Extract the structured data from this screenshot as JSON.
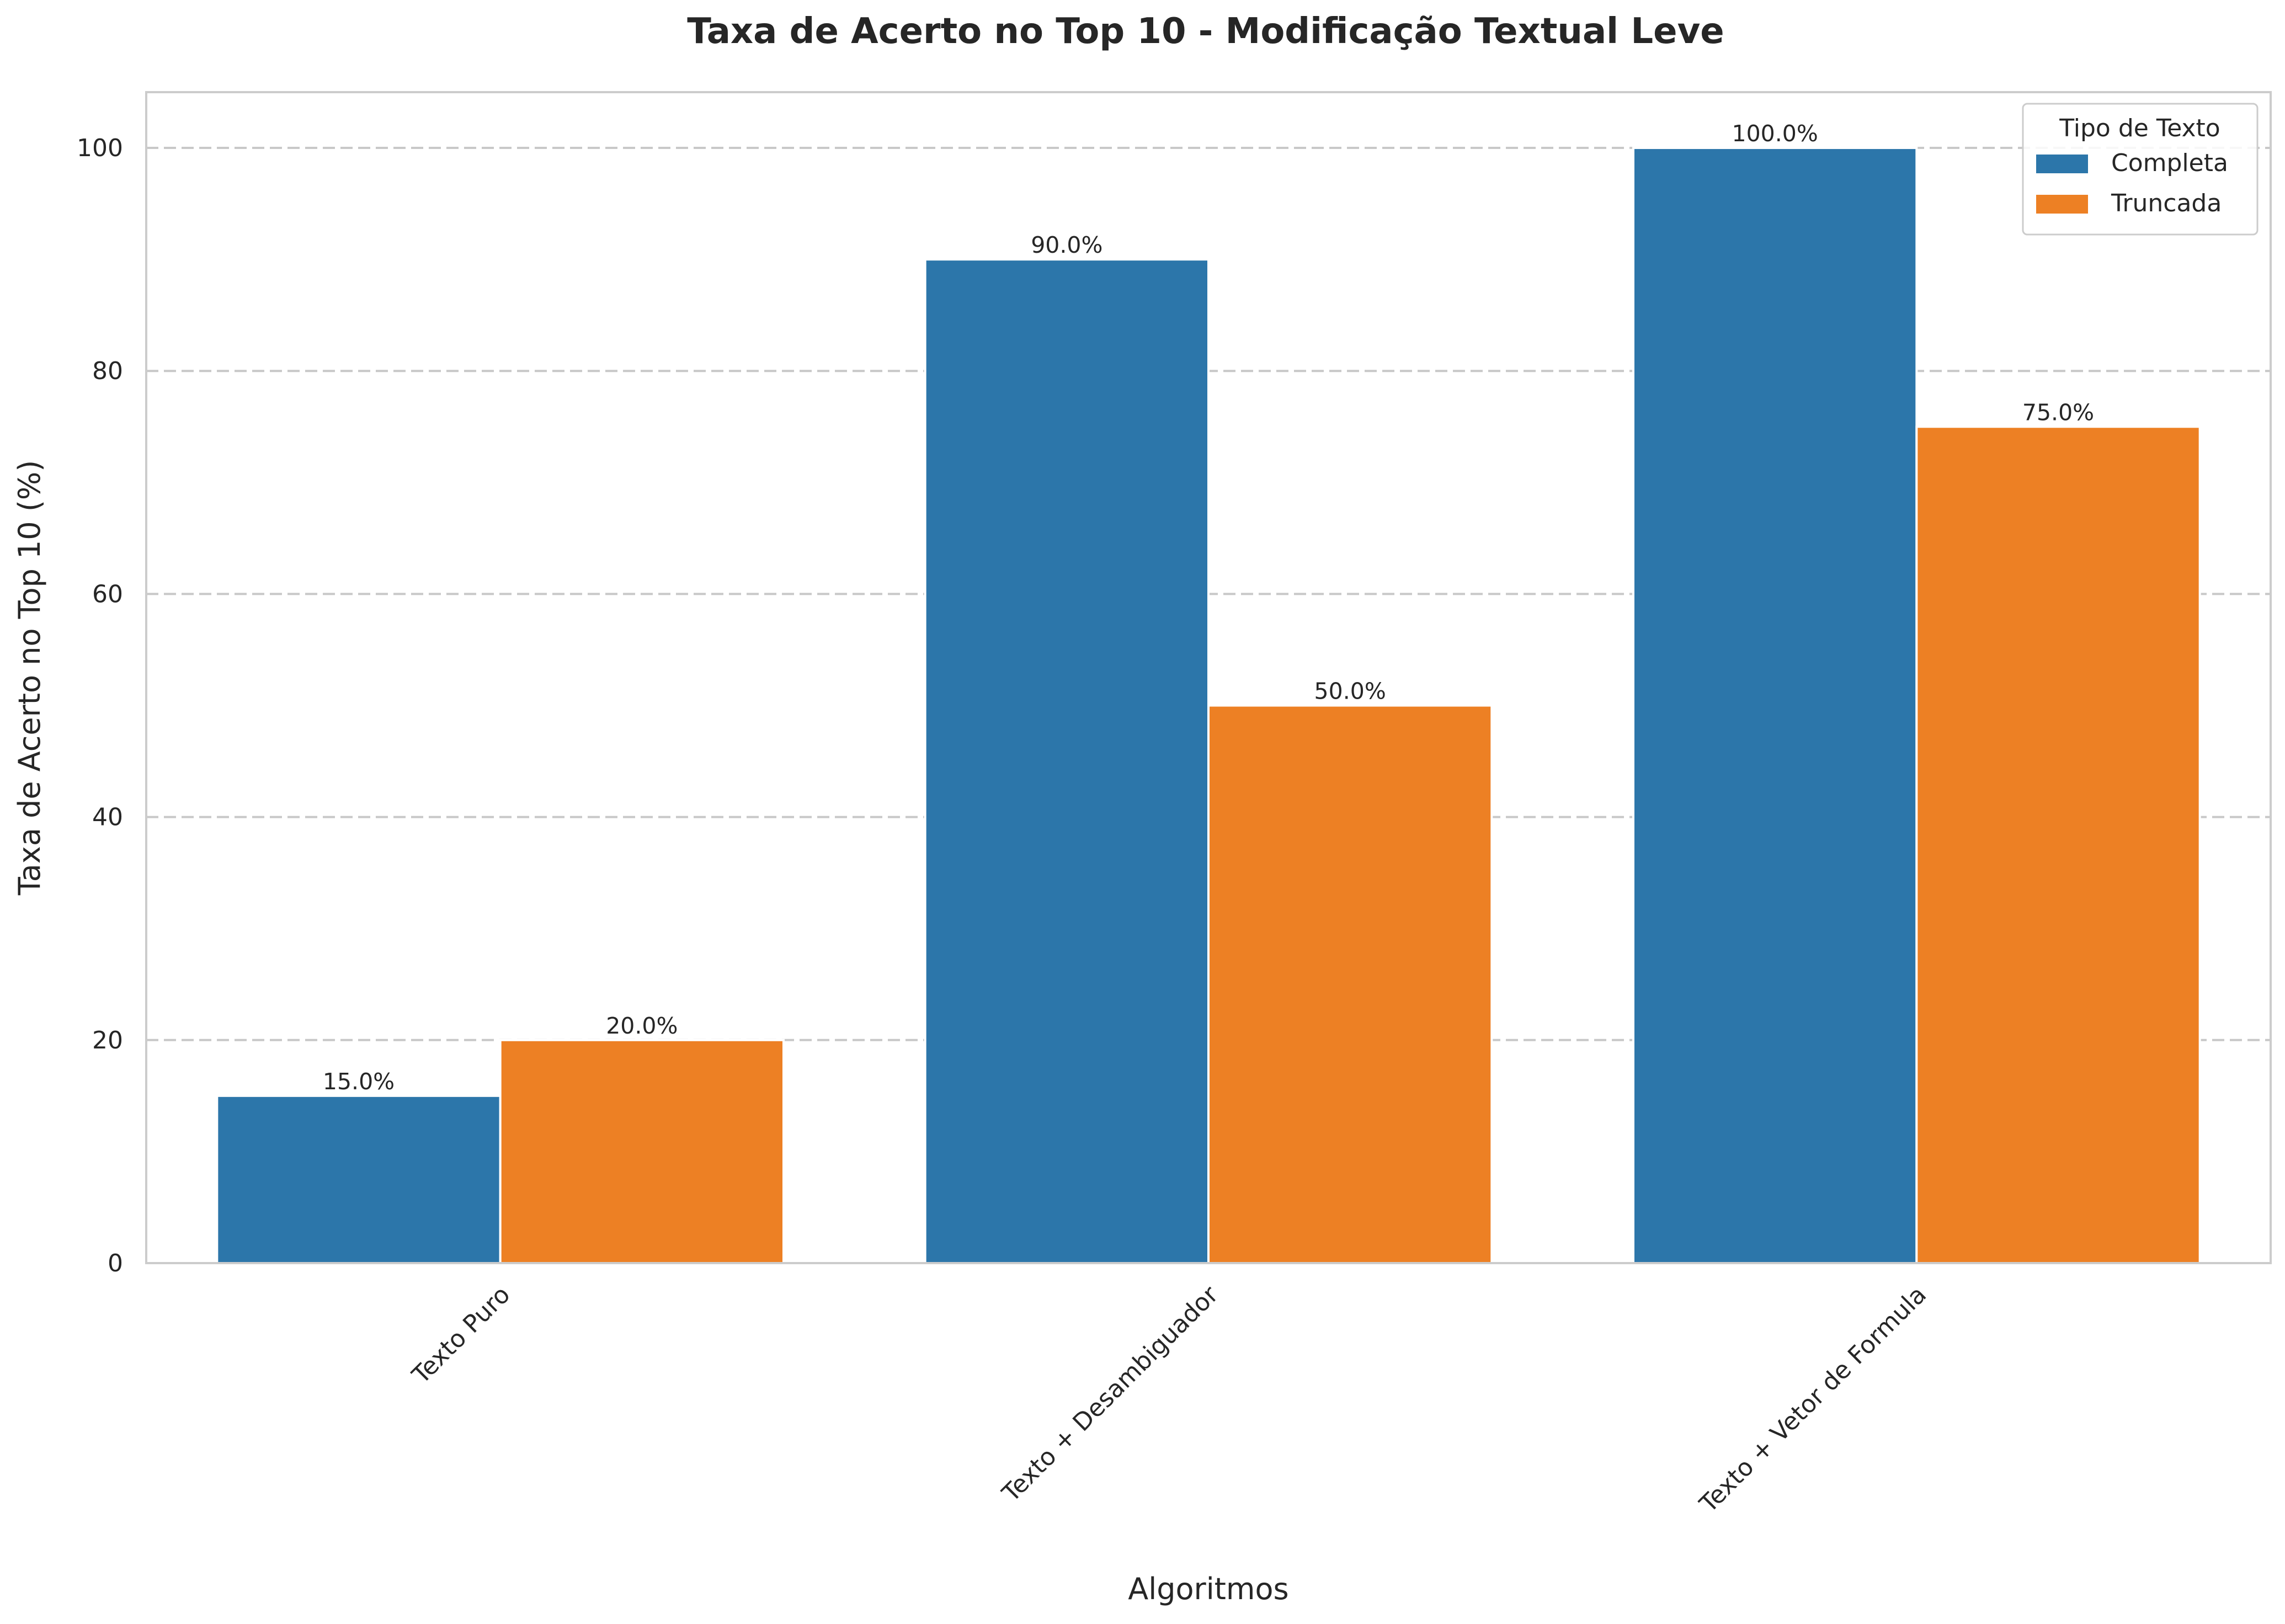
{
  "chart_data": {
    "type": "bar",
    "title": "Taxa de Acerto no Top 10 - Modificação Textual Leve",
    "xlabel": "Algoritmos",
    "ylabel": "Taxa de Acerto no Top 10 (%)",
    "categories": [
      "Texto Puro",
      "Texto + Desambiguador",
      "Texto + Vetor de Formula"
    ],
    "series": [
      {
        "name": "Completa",
        "values": [
          15.0,
          90.0,
          100.0
        ],
        "labels": [
          "15.0%",
          "90.0%",
          "100.0%"
        ],
        "color": "#2c76aa"
      },
      {
        "name": "Truncada",
        "values": [
          20.0,
          50.0,
          75.0
        ],
        "labels": [
          "20.0%",
          "50.0%",
          "75.0%"
        ],
        "color": "#ed8024"
      }
    ],
    "ylim": [
      0,
      105
    ],
    "yticks": [
      0,
      20,
      40,
      60,
      80,
      100
    ],
    "ytick_labels": [
      "0",
      "20",
      "40",
      "60",
      "80",
      "100"
    ],
    "grid": "horizontal dashed",
    "legend": {
      "title": "Tipo de Texto",
      "placement": "top-right"
    }
  }
}
